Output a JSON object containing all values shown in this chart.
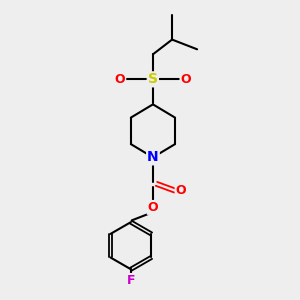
{
  "background_color": "#eeeeee",
  "bond_color": "#000000",
  "atom_colors": {
    "N": "#0000ff",
    "O": "#ff0000",
    "S": "#cccc00",
    "F": "#cc00cc"
  },
  "figsize": [
    3.0,
    3.0
  ],
  "dpi": 100,
  "xlim": [
    0,
    10
  ],
  "ylim": [
    0,
    10
  ]
}
